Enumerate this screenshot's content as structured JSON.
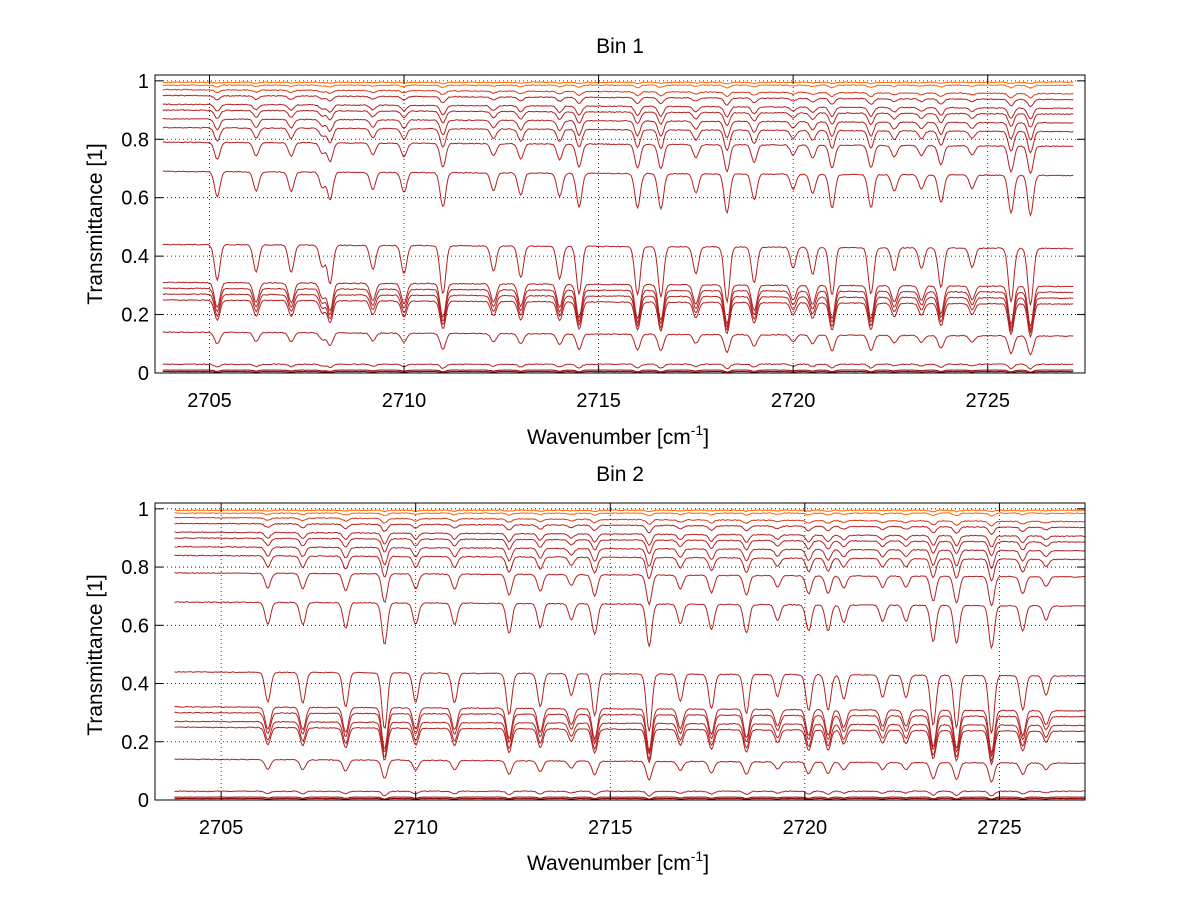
{
  "chart_data": [
    {
      "type": "line",
      "title": "Bin 1",
      "xlabel": "Wavenumber [cm",
      "xlabel_sup": "-1",
      "xlabel_tail": "]",
      "ylabel": "Transmittance [1]",
      "xlim": [
        2703.6,
        2727.5
      ],
      "ylim": [
        0,
        1.02
      ],
      "xticks": [
        2705,
        2710,
        2715,
        2720,
        2725
      ],
      "yticks": [
        0,
        0.2,
        0.4,
        0.6,
        0.8,
        1
      ],
      "xtick_labels": [
        "2705",
        "2710",
        "2715",
        "2720",
        "2725"
      ],
      "ytick_labels": [
        "0",
        "0.2",
        "0.4",
        "0.6",
        "0.8",
        "1"
      ],
      "grid": true,
      "x_range": [
        2703.8,
        2727.2
      ],
      "line_color": "#b22222",
      "series_baselines": [
        0.0,
        0.005,
        0.01,
        0.03,
        0.14,
        0.25,
        0.27,
        0.29,
        0.31,
        0.44,
        0.69,
        0.79,
        0.84,
        0.87,
        0.9,
        0.92,
        0.95,
        0.97,
        0.985,
        0.995
      ],
      "absorption_line_centers": [
        2705.2,
        2706.2,
        2707.1,
        2707.9,
        2708.1,
        2709.2,
        2710.0,
        2711.0,
        2712.3,
        2713.0,
        2714.0,
        2714.5,
        2716.0,
        2716.6,
        2717.5,
        2718.3,
        2719.0,
        2720.0,
        2720.5,
        2721.0,
        2722.0,
        2722.6,
        2723.3,
        2723.8,
        2724.6,
        2725.6,
        2726.1
      ]
    },
    {
      "type": "line",
      "title": "Bin 2",
      "xlabel": "Wavenumber [cm",
      "xlabel_sup": "-1",
      "xlabel_tail": "]",
      "ylabel": "Transmittance [1]",
      "xlim": [
        2703.3,
        2727.2
      ],
      "ylim": [
        0,
        1.02
      ],
      "xticks": [
        2705,
        2710,
        2715,
        2720,
        2725
      ],
      "yticks": [
        0,
        0.2,
        0.4,
        0.6,
        0.8,
        1
      ],
      "xtick_labels": [
        "2705",
        "2710",
        "2715",
        "2720",
        "2725"
      ],
      "ytick_labels": [
        "0",
        "0.2",
        "0.4",
        "0.6",
        "0.8",
        "1"
      ],
      "grid": true,
      "x_range": [
        2703.8,
        2727.2
      ],
      "line_color": "#b22222",
      "series_baselines": [
        0.0,
        0.005,
        0.01,
        0.03,
        0.14,
        0.25,
        0.27,
        0.3,
        0.32,
        0.44,
        0.68,
        0.78,
        0.84,
        0.87,
        0.9,
        0.92,
        0.95,
        0.97,
        0.985,
        0.995
      ],
      "absorption_line_centers": [
        2706.2,
        2707.1,
        2708.2,
        2709.2,
        2710.0,
        2711.0,
        2712.4,
        2713.2,
        2714.0,
        2714.6,
        2716.0,
        2716.8,
        2717.6,
        2718.5,
        2719.3,
        2720.1,
        2720.6,
        2721.0,
        2722.0,
        2722.6,
        2723.3,
        2723.9,
        2724.8,
        2725.6,
        2726.2
      ]
    }
  ]
}
